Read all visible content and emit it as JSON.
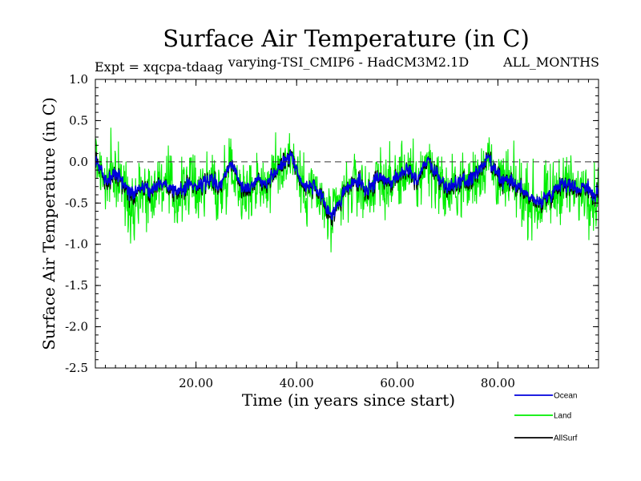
{
  "chart_data": {
    "type": "line",
    "title": "Surface Air Temperature (in C)",
    "subtitle_left": "Expt = xqcpa-tdaag",
    "subtitle_center": "varying-TSI_CMIP6 - HadCM3M2.1D",
    "subtitle_right": "ALL_MONTHS",
    "xlabel": "Time (in years since start)",
    "ylabel": "Surface Air Temperature (in C)",
    "xlim": [
      0,
      100
    ],
    "ylim": [
      -2.5,
      1.0
    ],
    "x_ticks": [
      20,
      40,
      60,
      80
    ],
    "x_tick_labels": [
      "20.00",
      "40.00",
      "60.00",
      "80.00"
    ],
    "y_ticks": [
      -2.5,
      -2.0,
      -1.5,
      -1.0,
      -0.5,
      0.0,
      0.5,
      1.0
    ],
    "y_tick_labels": [
      "-2.5",
      "-2.0",
      "-1.5",
      "-1.0",
      "-0.5",
      "0.0",
      "0.5",
      "1.0"
    ],
    "reference_line": 0.0,
    "grid": false,
    "legend_position": "bottom-right",
    "x": [
      0,
      1,
      2,
      3,
      4,
      5,
      6,
      7,
      8,
      9,
      10,
      11,
      12,
      13,
      14,
      15,
      16,
      17,
      18,
      19,
      20,
      21,
      22,
      23,
      24,
      25,
      26,
      27,
      28,
      29,
      30,
      31,
      32,
      33,
      34,
      35,
      36,
      37,
      38,
      39,
      40,
      41,
      42,
      43,
      44,
      45,
      46,
      47,
      48,
      49,
      50,
      51,
      52,
      53,
      54,
      55,
      56,
      57,
      58,
      59,
      60,
      61,
      62,
      63,
      64,
      65,
      66,
      67,
      68,
      69,
      70,
      71,
      72,
      73,
      74,
      75,
      76,
      77,
      78,
      79,
      80,
      81,
      82,
      83,
      84,
      85,
      86,
      87,
      88,
      89,
      90,
      91,
      92,
      93,
      94,
      95,
      96,
      97,
      98,
      99,
      100
    ],
    "series": [
      {
        "name": "Land",
        "color": "#00ee00",
        "values": [
          0.05,
          -0.1,
          -0.3,
          -0.2,
          -0.15,
          -0.25,
          -0.4,
          -0.5,
          -0.45,
          -0.3,
          -0.35,
          -0.4,
          -0.3,
          -0.25,
          -0.3,
          -0.35,
          -0.45,
          -0.4,
          -0.3,
          -0.25,
          -0.35,
          -0.3,
          -0.25,
          -0.2,
          -0.35,
          -0.4,
          -0.1,
          0.0,
          -0.2,
          -0.3,
          -0.4,
          -0.35,
          -0.2,
          -0.25,
          -0.3,
          -0.2,
          -0.1,
          -0.05,
          0.05,
          0.1,
          -0.1,
          -0.3,
          -0.35,
          -0.3,
          -0.4,
          -0.5,
          -0.6,
          -0.75,
          -0.6,
          -0.45,
          -0.35,
          -0.3,
          -0.25,
          -0.35,
          -0.4,
          -0.3,
          -0.25,
          -0.2,
          -0.3,
          -0.25,
          -0.2,
          -0.15,
          -0.1,
          -0.2,
          -0.3,
          -0.1,
          0.0,
          -0.1,
          -0.2,
          -0.3,
          -0.4,
          -0.35,
          -0.3,
          -0.25,
          -0.3,
          -0.2,
          -0.15,
          -0.05,
          0.05,
          -0.1,
          -0.2,
          -0.3,
          -0.25,
          -0.3,
          -0.35,
          -0.4,
          -0.45,
          -0.5,
          -0.55,
          -0.5,
          -0.45,
          -0.4,
          -0.3,
          -0.25,
          -0.3,
          -0.35,
          -0.4,
          -0.3,
          -0.35,
          -0.45,
          -0.4
        ]
      },
      {
        "name": "Ocean",
        "color": "#0000dd",
        "values": [
          0.0,
          -0.08,
          -0.22,
          -0.18,
          -0.12,
          -0.2,
          -0.3,
          -0.38,
          -0.36,
          -0.3,
          -0.32,
          -0.35,
          -0.3,
          -0.25,
          -0.28,
          -0.3,
          -0.36,
          -0.35,
          -0.3,
          -0.26,
          -0.3,
          -0.28,
          -0.24,
          -0.2,
          -0.28,
          -0.3,
          -0.12,
          0.0,
          -0.15,
          -0.25,
          -0.32,
          -0.3,
          -0.2,
          -0.22,
          -0.25,
          -0.18,
          -0.1,
          -0.05,
          0.05,
          0.08,
          -0.08,
          -0.25,
          -0.3,
          -0.28,
          -0.35,
          -0.45,
          -0.55,
          -0.65,
          -0.55,
          -0.42,
          -0.32,
          -0.28,
          -0.22,
          -0.3,
          -0.34,
          -0.28,
          -0.22,
          -0.18,
          -0.25,
          -0.22,
          -0.18,
          -0.12,
          -0.08,
          -0.15,
          -0.22,
          -0.05,
          0.02,
          -0.08,
          -0.16,
          -0.25,
          -0.32,
          -0.3,
          -0.26,
          -0.22,
          -0.25,
          -0.18,
          -0.12,
          -0.04,
          0.04,
          -0.08,
          -0.16,
          -0.25,
          -0.22,
          -0.26,
          -0.3,
          -0.35,
          -0.4,
          -0.45,
          -0.5,
          -0.45,
          -0.4,
          -0.36,
          -0.28,
          -0.24,
          -0.27,
          -0.3,
          -0.34,
          -0.28,
          -0.32,
          -0.4,
          -0.38
        ]
      },
      {
        "name": "AllSurf",
        "color": "#000000",
        "values": [
          0.02,
          -0.09,
          -0.25,
          -0.19,
          -0.13,
          -0.22,
          -0.33,
          -0.42,
          -0.39,
          -0.3,
          -0.33,
          -0.37,
          -0.3,
          -0.25,
          -0.29,
          -0.32,
          -0.39,
          -0.37,
          -0.3,
          -0.26,
          -0.32,
          -0.29,
          -0.24,
          -0.2,
          -0.3,
          -0.33,
          -0.12,
          0.0,
          -0.17,
          -0.27,
          -0.35,
          -0.32,
          -0.2,
          -0.23,
          -0.27,
          -0.19,
          -0.1,
          -0.05,
          0.05,
          0.09,
          -0.09,
          -0.27,
          -0.32,
          -0.29,
          -0.37,
          -0.47,
          -0.57,
          -0.7,
          -0.57,
          -0.43,
          -0.33,
          -0.29,
          -0.23,
          -0.32,
          -0.36,
          -0.29,
          -0.23,
          -0.19,
          -0.27,
          -0.23,
          -0.19,
          -0.13,
          -0.09,
          -0.17,
          -0.25,
          -0.07,
          0.01,
          -0.09,
          -0.18,
          -0.27,
          -0.35,
          -0.32,
          -0.28,
          -0.23,
          -0.27,
          -0.19,
          -0.13,
          -0.05,
          0.04,
          -0.09,
          -0.18,
          -0.27,
          -0.23,
          -0.28,
          -0.32,
          -0.37,
          -0.42,
          -0.47,
          -0.52,
          -0.47,
          -0.42,
          -0.38,
          -0.29,
          -0.25,
          -0.28,
          -0.32,
          -0.36,
          -0.29,
          -0.33,
          -0.42,
          -0.39
        ]
      }
    ],
    "legend": [
      "Ocean",
      "Land",
      "AllSurf"
    ]
  }
}
